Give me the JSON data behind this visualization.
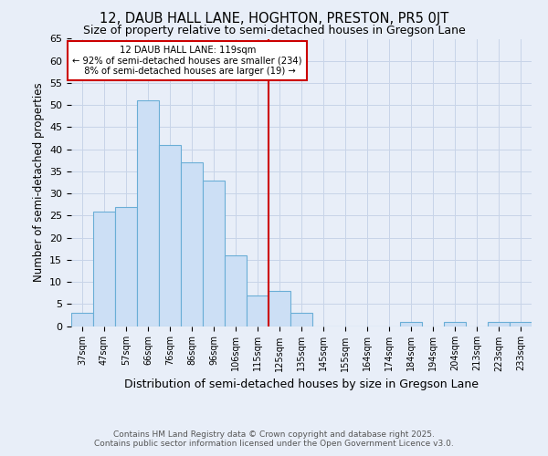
{
  "title1": "12, DAUB HALL LANE, HOGHTON, PRESTON, PR5 0JT",
  "title2": "Size of property relative to semi-detached houses in Gregson Lane",
  "xlabel": "Distribution of semi-detached houses by size in Gregson Lane",
  "ylabel": "Number of semi-detached properties",
  "categories": [
    "37sqm",
    "47sqm",
    "57sqm",
    "66sqm",
    "76sqm",
    "86sqm",
    "96sqm",
    "106sqm",
    "115sqm",
    "125sqm",
    "135sqm",
    "145sqm",
    "155sqm",
    "164sqm",
    "174sqm",
    "184sqm",
    "194sqm",
    "204sqm",
    "213sqm",
    "223sqm",
    "233sqm"
  ],
  "values": [
    3,
    26,
    27,
    51,
    41,
    37,
    33,
    16,
    7,
    8,
    3,
    0,
    0,
    0,
    0,
    1,
    0,
    1,
    0,
    1,
    1
  ],
  "bar_color": "#ccdff5",
  "bar_edge_color": "#6aaed6",
  "property_line_x": 8.5,
  "property_label": "12 DAUB HALL LANE: 119sqm",
  "pct_smaller": "92%",
  "pct_smaller_count": 234,
  "pct_larger": "8%",
  "pct_larger_count": 19,
  "vline_color": "#cc0000",
  "box_edge_color": "#cc0000",
  "ylim": [
    0,
    65
  ],
  "yticks": [
    0,
    5,
    10,
    15,
    20,
    25,
    30,
    35,
    40,
    45,
    50,
    55,
    60,
    65
  ],
  "footer1": "Contains HM Land Registry data © Crown copyright and database right 2025.",
  "footer2": "Contains public sector information licensed under the Open Government Licence v3.0.",
  "background_color": "#e8eef8",
  "grid_color": "#c8d4e8"
}
